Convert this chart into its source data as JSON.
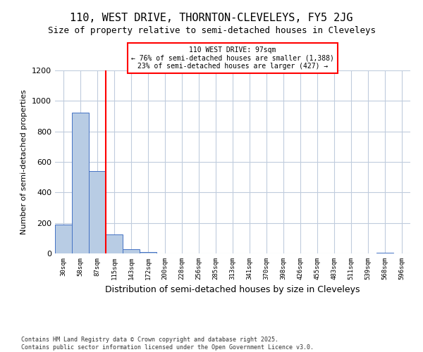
{
  "title": "110, WEST DRIVE, THORNTON-CLEVELEYS, FY5 2JG",
  "subtitle": "Size of property relative to semi-detached houses in Cleveleys",
  "xlabel": "Distribution of semi-detached houses by size in Cleveleys",
  "ylabel": "Number of semi-detached properties",
  "categories": [
    "30sqm",
    "58sqm",
    "87sqm",
    "115sqm",
    "143sqm",
    "172sqm",
    "200sqm",
    "228sqm",
    "256sqm",
    "285sqm",
    "313sqm",
    "341sqm",
    "370sqm",
    "398sqm",
    "426sqm",
    "455sqm",
    "483sqm",
    "511sqm",
    "539sqm",
    "568sqm",
    "596sqm"
  ],
  "values": [
    190,
    925,
    540,
    125,
    28,
    7,
    0,
    0,
    0,
    0,
    0,
    0,
    0,
    0,
    0,
    0,
    0,
    0,
    0,
    5,
    0
  ],
  "bar_color": "#b8cce4",
  "bar_edge_color": "#4472c4",
  "vline_x": 2.5,
  "vline_color": "#ff0000",
  "annotation_text": "110 WEST DRIVE: 97sqm\n← 76% of semi-detached houses are smaller (1,388)\n23% of semi-detached houses are larger (427) →",
  "annotation_box_color": "#ff0000",
  "ylim": [
    0,
    1200
  ],
  "yticks": [
    0,
    200,
    400,
    600,
    800,
    1000,
    1200
  ],
  "background_color": "#ffffff",
  "grid_color": "#c0ccdd",
  "footer_text": "Contains HM Land Registry data © Crown copyright and database right 2025.\nContains public sector information licensed under the Open Government Licence v3.0.",
  "title_fontsize": 11,
  "subtitle_fontsize": 9,
  "ylabel_fontsize": 8,
  "xlabel_fontsize": 9,
  "bar_width": 1.0
}
